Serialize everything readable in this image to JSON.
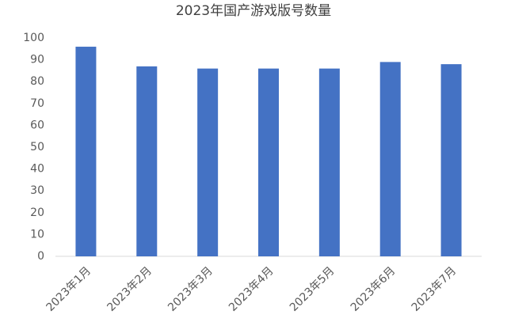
{
  "chart_data": {
    "type": "bar",
    "title": "2023年国产游戏版号数量",
    "categories": [
      "2023年1月",
      "2023年2月",
      "2023年3月",
      "2023年4月",
      "2023年5月",
      "2023年6月",
      "2023年7月"
    ],
    "values": [
      96,
      87,
      86,
      86,
      86,
      89,
      88
    ],
    "color": "#4472c4",
    "ylim": [
      0,
      100
    ],
    "yticks": [
      0,
      10,
      20,
      30,
      40,
      50,
      60,
      70,
      80,
      90,
      100
    ],
    "grid": false
  }
}
